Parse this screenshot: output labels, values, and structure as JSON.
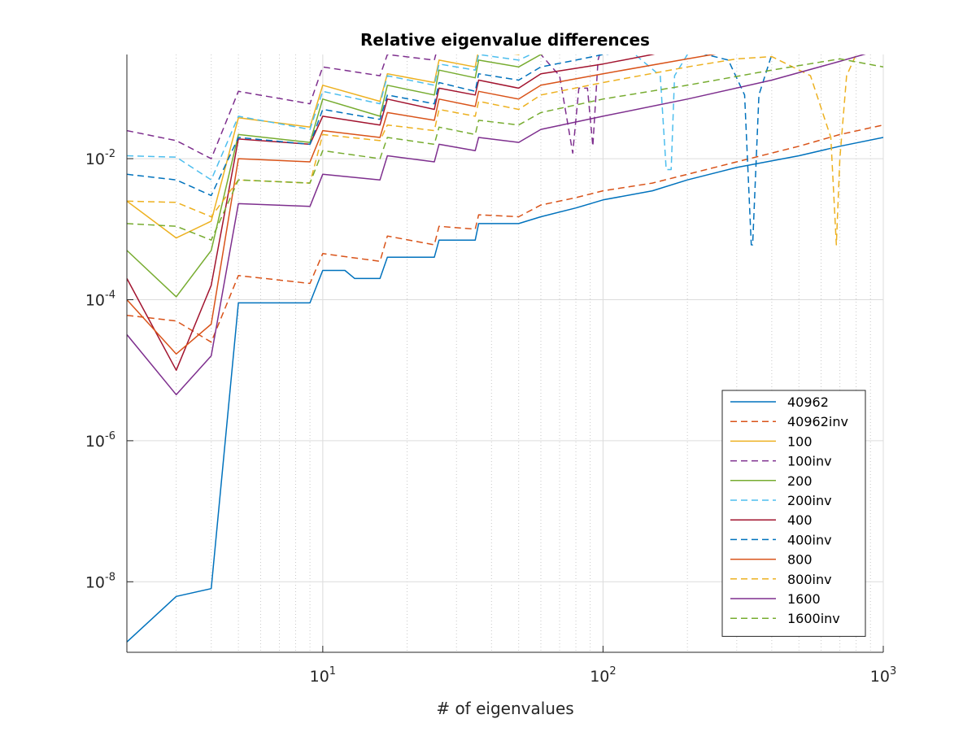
{
  "chart_data": {
    "type": "line",
    "title": "Relative eigenvalue differences",
    "xlabel": "# of eigenvalues",
    "ylabel": "",
    "x_scale": "log",
    "y_scale": "log",
    "xlim": [
      2,
      1000
    ],
    "ylim": [
      1e-09,
      0.3
    ],
    "grid": true,
    "legend_position": "bottom-right",
    "x_ticks": [
      {
        "base": "10",
        "exp": "1"
      },
      {
        "base": "10",
        "exp": "2"
      },
      {
        "base": "10",
        "exp": "3"
      }
    ],
    "y_ticks": [
      {
        "base": "10",
        "exp": "-8"
      },
      {
        "base": "10",
        "exp": "-6"
      },
      {
        "base": "10",
        "exp": "-4"
      },
      {
        "base": "10",
        "exp": "-2"
      }
    ],
    "series": [
      {
        "name": "40962",
        "color": "#0072BD",
        "dash": "solid",
        "points": [
          [
            2,
            1.4e-09
          ],
          [
            3,
            6.2e-09
          ],
          [
            4,
            8e-09
          ],
          [
            5,
            9e-05
          ],
          [
            9,
            9e-05
          ],
          [
            10,
            0.00026
          ],
          [
            12,
            0.00026
          ],
          [
            13,
            0.0002
          ],
          [
            16,
            0.0002
          ],
          [
            17,
            0.0004
          ],
          [
            25,
            0.0004
          ],
          [
            26,
            0.0007
          ],
          [
            35,
            0.0007
          ],
          [
            36,
            0.0012
          ],
          [
            50,
            0.0012
          ],
          [
            60,
            0.0015
          ],
          [
            80,
            0.002
          ],
          [
            100,
            0.0026
          ],
          [
            150,
            0.0035
          ],
          [
            200,
            0.005
          ],
          [
            300,
            0.0075
          ],
          [
            500,
            0.011
          ],
          [
            700,
            0.015
          ],
          [
            1000,
            0.02
          ]
        ]
      },
      {
        "name": "40962inv",
        "color": "#D95319",
        "dash": "dashed",
        "points": [
          [
            2,
            6e-05
          ],
          [
            3,
            5e-05
          ],
          [
            4,
            2.5e-05
          ],
          [
            5,
            0.00022
          ],
          [
            9,
            0.00017
          ],
          [
            10,
            0.00045
          ],
          [
            16,
            0.00035
          ],
          [
            17,
            0.0008
          ],
          [
            25,
            0.0006
          ],
          [
            26,
            0.0011
          ],
          [
            35,
            0.001
          ],
          [
            36,
            0.0016
          ],
          [
            50,
            0.0015
          ],
          [
            60,
            0.0022
          ],
          [
            80,
            0.0028
          ],
          [
            100,
            0.0035
          ],
          [
            150,
            0.0045
          ],
          [
            200,
            0.006
          ],
          [
            300,
            0.009
          ],
          [
            500,
            0.015
          ],
          [
            700,
            0.022
          ],
          [
            1000,
            0.03
          ]
        ]
      },
      {
        "name": "100",
        "color": "#EDB120",
        "dash": "solid",
        "points": [
          [
            2,
            0.0025
          ],
          [
            3,
            0.00075
          ],
          [
            4,
            0.0013
          ],
          [
            5,
            0.038
          ],
          [
            9,
            0.028
          ],
          [
            10,
            0.11
          ],
          [
            16,
            0.065
          ],
          [
            17,
            0.16
          ],
          [
            25,
            0.12
          ],
          [
            26,
            0.25
          ],
          [
            35,
            0.2
          ],
          [
            36,
            0.35
          ],
          [
            50,
            0.3
          ],
          [
            60,
            0.45
          ],
          [
            80,
            0.5
          ],
          [
            100,
            0.5
          ]
        ]
      },
      {
        "name": "100inv",
        "color": "#7E2F8E",
        "dash": "dashed",
        "points": [
          [
            2,
            0.025
          ],
          [
            3,
            0.018
          ],
          [
            4,
            0.01
          ],
          [
            5,
            0.09
          ],
          [
            9,
            0.06
          ],
          [
            10,
            0.2
          ],
          [
            16,
            0.15
          ],
          [
            17,
            0.3
          ],
          [
            25,
            0.25
          ],
          [
            26,
            0.45
          ],
          [
            35,
            0.35
          ],
          [
            36,
            0.6
          ],
          [
            50,
            0.5
          ],
          [
            60,
            0.3
          ],
          [
            70,
            0.15
          ],
          [
            78,
            0.012
          ],
          [
            82,
            0.1
          ],
          [
            88,
            0.1
          ],
          [
            92,
            0.015
          ],
          [
            96,
            0.25
          ],
          [
            100,
            0.45
          ]
        ]
      },
      {
        "name": "200",
        "color": "#77AC30",
        "dash": "solid",
        "points": [
          [
            2,
            0.0005
          ],
          [
            3,
            0.00011
          ],
          [
            4,
            0.0005
          ],
          [
            5,
            0.022
          ],
          [
            9,
            0.017
          ],
          [
            10,
            0.07
          ],
          [
            16,
            0.04
          ],
          [
            17,
            0.11
          ],
          [
            25,
            0.08
          ],
          [
            26,
            0.18
          ],
          [
            35,
            0.14
          ],
          [
            36,
            0.25
          ],
          [
            50,
            0.2
          ],
          [
            60,
            0.3
          ],
          [
            80,
            0.4
          ],
          [
            100,
            0.45
          ],
          [
            150,
            0.5
          ],
          [
            200,
            0.55
          ]
        ]
      },
      {
        "name": "200inv",
        "color": "#4DBEEE",
        "dash": "dashed",
        "points": [
          [
            2,
            0.011
          ],
          [
            3,
            0.0105
          ],
          [
            4,
            0.005
          ],
          [
            5,
            0.04
          ],
          [
            9,
            0.026
          ],
          [
            10,
            0.09
          ],
          [
            16,
            0.06
          ],
          [
            17,
            0.15
          ],
          [
            25,
            0.11
          ],
          [
            26,
            0.22
          ],
          [
            35,
            0.18
          ],
          [
            36,
            0.3
          ],
          [
            50,
            0.25
          ],
          [
            60,
            0.35
          ],
          [
            80,
            0.4
          ],
          [
            100,
            0.4
          ],
          [
            130,
            0.3
          ],
          [
            160,
            0.15
          ],
          [
            168,
            0.007
          ],
          [
            175,
            0.007
          ],
          [
            180,
            0.15
          ],
          [
            200,
            0.3
          ]
        ]
      },
      {
        "name": "400",
        "color": "#A2142F",
        "dash": "solid",
        "points": [
          [
            2,
            0.0002
          ],
          [
            3,
            1e-05
          ],
          [
            4,
            0.00016
          ],
          [
            5,
            0.019
          ],
          [
            9,
            0.016
          ],
          [
            10,
            0.04
          ],
          [
            16,
            0.03
          ],
          [
            17,
            0.07
          ],
          [
            25,
            0.05
          ],
          [
            26,
            0.1
          ],
          [
            35,
            0.08
          ],
          [
            36,
            0.13
          ],
          [
            50,
            0.1
          ],
          [
            60,
            0.16
          ],
          [
            100,
            0.22
          ],
          [
            150,
            0.3
          ],
          [
            200,
            0.4
          ],
          [
            300,
            0.5
          ],
          [
            400,
            0.55
          ]
        ]
      },
      {
        "name": "400inv",
        "color": "#0072BD",
        "dash": "dashed",
        "points": [
          [
            2,
            0.006
          ],
          [
            3,
            0.005
          ],
          [
            4,
            0.003
          ],
          [
            5,
            0.02
          ],
          [
            9,
            0.016
          ],
          [
            10,
            0.05
          ],
          [
            16,
            0.036
          ],
          [
            17,
            0.08
          ],
          [
            25,
            0.06
          ],
          [
            26,
            0.12
          ],
          [
            35,
            0.09
          ],
          [
            36,
            0.16
          ],
          [
            50,
            0.13
          ],
          [
            60,
            0.2
          ],
          [
            80,
            0.25
          ],
          [
            100,
            0.3
          ],
          [
            150,
            0.35
          ],
          [
            200,
            0.35
          ],
          [
            280,
            0.25
          ],
          [
            320,
            0.08
          ],
          [
            338,
            0.0006
          ],
          [
            342,
            0.0006
          ],
          [
            360,
            0.08
          ],
          [
            400,
            0.3
          ]
        ]
      },
      {
        "name": "800",
        "color": "#D95319",
        "dash": "solid",
        "points": [
          [
            2,
            0.0001
          ],
          [
            3,
            1.7e-05
          ],
          [
            4,
            4.5e-05
          ],
          [
            5,
            0.01
          ],
          [
            9,
            0.009
          ],
          [
            10,
            0.025
          ],
          [
            16,
            0.02
          ],
          [
            17,
            0.045
          ],
          [
            25,
            0.035
          ],
          [
            26,
            0.07
          ],
          [
            35,
            0.055
          ],
          [
            36,
            0.09
          ],
          [
            50,
            0.07
          ],
          [
            60,
            0.11
          ],
          [
            100,
            0.16
          ],
          [
            200,
            0.26
          ],
          [
            400,
            0.42
          ],
          [
            600,
            0.52
          ],
          [
            800,
            0.55
          ]
        ]
      },
      {
        "name": "800inv",
        "color": "#EDB120",
        "dash": "dashed",
        "points": [
          [
            2,
            0.0025
          ],
          [
            3,
            0.0024
          ],
          [
            4,
            0.0015
          ],
          [
            5,
            0.005
          ],
          [
            9,
            0.0045
          ],
          [
            10,
            0.022
          ],
          [
            16,
            0.018
          ],
          [
            17,
            0.03
          ],
          [
            25,
            0.025
          ],
          [
            26,
            0.05
          ],
          [
            35,
            0.04
          ],
          [
            36,
            0.065
          ],
          [
            50,
            0.05
          ],
          [
            60,
            0.08
          ],
          [
            100,
            0.12
          ],
          [
            200,
            0.2
          ],
          [
            300,
            0.26
          ],
          [
            400,
            0.28
          ],
          [
            550,
            0.15
          ],
          [
            650,
            0.02
          ],
          [
            680,
            0.0006
          ],
          [
            700,
            0.01
          ],
          [
            740,
            0.15
          ],
          [
            800,
            0.3
          ]
        ]
      },
      {
        "name": "1600",
        "color": "#7E2F8E",
        "dash": "solid",
        "points": [
          [
            2,
            3.2e-05
          ],
          [
            3,
            4.5e-06
          ],
          [
            4,
            1.6e-05
          ],
          [
            5,
            0.0023
          ],
          [
            9,
            0.0021
          ],
          [
            10,
            0.006
          ],
          [
            16,
            0.005
          ],
          [
            17,
            0.011
          ],
          [
            25,
            0.009
          ],
          [
            26,
            0.016
          ],
          [
            35,
            0.013
          ],
          [
            36,
            0.02
          ],
          [
            50,
            0.017
          ],
          [
            60,
            0.026
          ],
          [
            100,
            0.04
          ],
          [
            200,
            0.07
          ],
          [
            400,
            0.13
          ],
          [
            700,
            0.24
          ],
          [
            1000,
            0.36
          ]
        ]
      },
      {
        "name": "1600inv",
        "color": "#77AC30",
        "dash": "dashed",
        "points": [
          [
            2,
            0.0012
          ],
          [
            3,
            0.0011
          ],
          [
            4,
            0.0007
          ],
          [
            5,
            0.005
          ],
          [
            9,
            0.0045
          ],
          [
            10,
            0.013
          ],
          [
            16,
            0.01
          ],
          [
            17,
            0.02
          ],
          [
            25,
            0.016
          ],
          [
            26,
            0.028
          ],
          [
            35,
            0.022
          ],
          [
            36,
            0.035
          ],
          [
            50,
            0.03
          ],
          [
            60,
            0.045
          ],
          [
            100,
            0.07
          ],
          [
            200,
            0.11
          ],
          [
            400,
            0.18
          ],
          [
            700,
            0.26
          ],
          [
            1000,
            0.2
          ]
        ]
      }
    ]
  }
}
